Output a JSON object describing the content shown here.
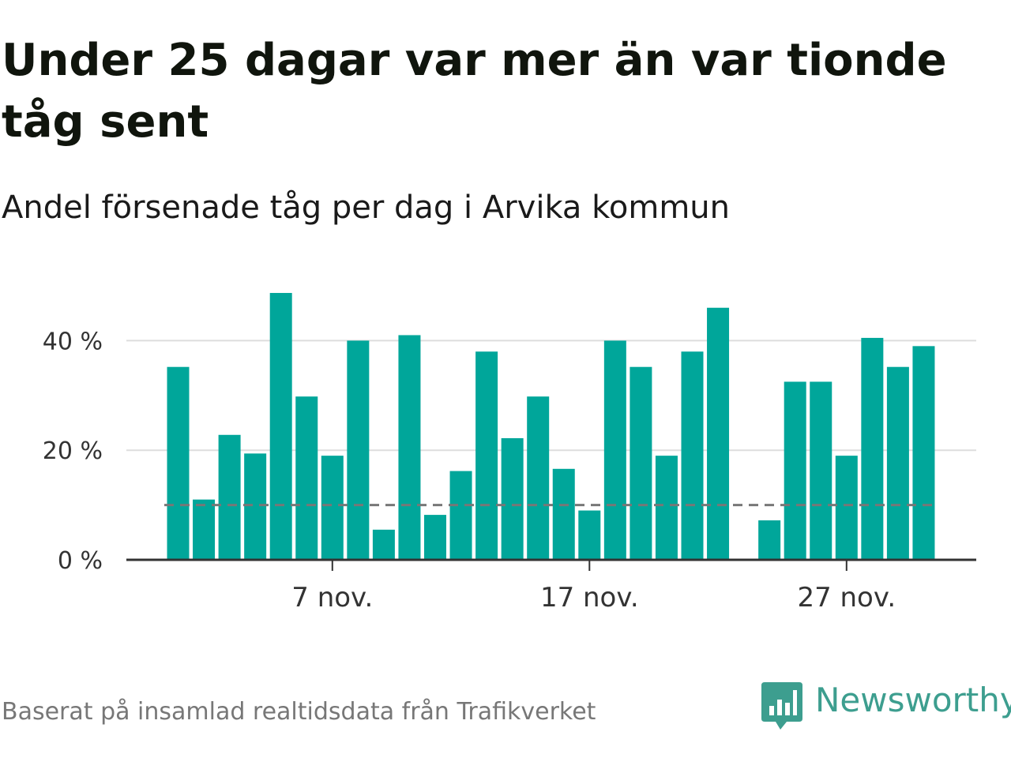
{
  "title": "Under 25 dagar var mer än var tionde tåg sent",
  "subtitle": "Andel försenade tåg per dag i Arvika kommun",
  "source": "Baserat på insamlad realtidsdata från Trafikverket",
  "brand": {
    "name": "Newsworthy",
    "color": "#3d9e8f",
    "icon": "newsworthy-chart-bubble-icon"
  },
  "chart_data": {
    "type": "bar",
    "days": [
      1,
      2,
      3,
      4,
      5,
      6,
      7,
      8,
      9,
      10,
      11,
      12,
      13,
      14,
      15,
      16,
      17,
      18,
      19,
      20,
      21,
      22,
      23,
      24,
      25,
      26,
      27,
      28,
      29,
      30
    ],
    "month": "nov.",
    "values": [
      35.2,
      11,
      22.8,
      19.4,
      48.7,
      29.8,
      19,
      40,
      5.5,
      41,
      8.2,
      16.2,
      38,
      22.2,
      29.8,
      16.6,
      9,
      40,
      35.2,
      19,
      38,
      46,
      null,
      7.2,
      32.5,
      32.5,
      19,
      40.5,
      35.2,
      39
    ],
    "ylim": [
      0,
      50
    ],
    "yticks": [
      0,
      20,
      40
    ],
    "ytick_labels": [
      "0 %",
      "20 %",
      "40 %"
    ],
    "xticks": [
      {
        "day": 7,
        "label": "7 nov."
      },
      {
        "day": 17,
        "label": "17 nov."
      },
      {
        "day": 27,
        "label": "27 nov."
      }
    ],
    "reference_line": {
      "value": 10,
      "style": "dashed",
      "color": "#777777"
    },
    "bar_color": "#00a69a",
    "gridlines": true
  }
}
